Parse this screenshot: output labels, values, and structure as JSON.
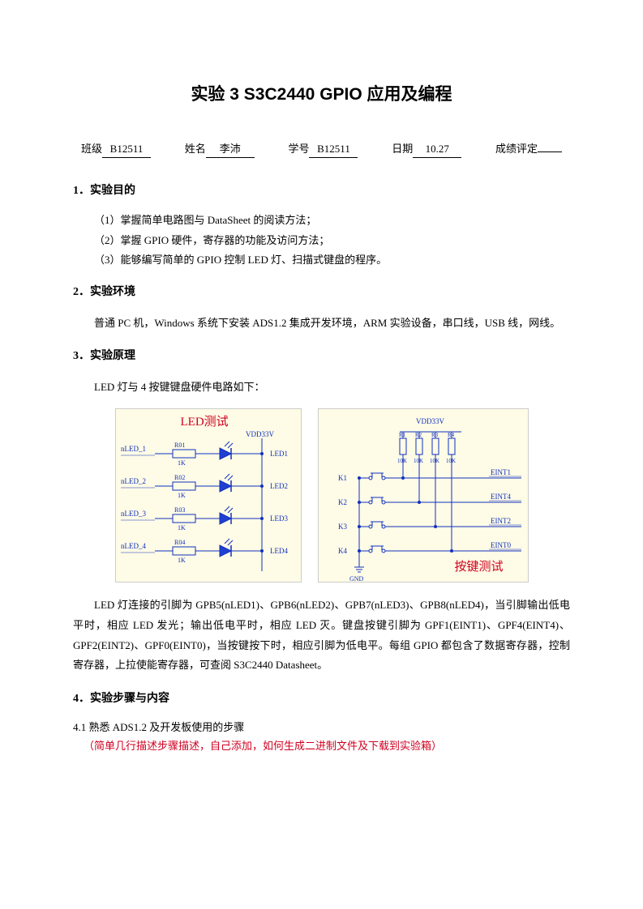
{
  "title": "实验 3 S3C2440 GPIO 应用及编程",
  "form": {
    "class_label": "班级",
    "class_value": "B12511",
    "name_label": "姓名",
    "name_value": "李沛",
    "id_label": "学号",
    "id_value": "B12511",
    "date_label": "日期",
    "date_value": "10.27",
    "grade_label": "成绩评定"
  },
  "sections": {
    "s1": {
      "heading": "1．实验目的",
      "items": [
        "（1）掌握简单电路图与 DataSheet 的阅读方法；",
        "（2）掌握 GPIO 硬件，寄存器的功能及访问方法；",
        "（3）能够编写简单的 GPIO 控制 LED 灯、扫描式键盘的程序。"
      ]
    },
    "s2": {
      "heading": "2．实验环境",
      "text": "普通 PC 机，Windows 系统下安装 ADS1.2 集成开发环境，ARM 实验设备，串口线，USB 线，网线。"
    },
    "s3": {
      "heading": "3．实验原理",
      "intro": "LED 灯与 4 按键键盘硬件电路如下：",
      "led_diagram": {
        "title": "LED测试",
        "vdd_label": "VDD33V",
        "rows": [
          {
            "pin": "nLED_1",
            "r": "R01",
            "rval": "1K",
            "led": "LED1"
          },
          {
            "pin": "nLED_2",
            "r": "R02",
            "rval": "1K",
            "led": "LED2"
          },
          {
            "pin": "nLED_3",
            "r": "R03",
            "rval": "1K",
            "led": "LED3"
          },
          {
            "pin": "nLED_4",
            "r": "R04",
            "rval": "1K",
            "led": "LED4"
          }
        ],
        "colors": {
          "wire": "#1030c0",
          "led_fill": "#2040d0",
          "text": "#1030c0",
          "title": "#d00020"
        }
      },
      "key_diagram": {
        "title": "按键测试",
        "vdd_label": "VDD33V",
        "gnd_label": "GND",
        "resistors": [
          "R1",
          "R2",
          "R3",
          "R4"
        ],
        "rval": "10K",
        "keys": [
          "K1",
          "K2",
          "K3",
          "K4"
        ],
        "eints": [
          "EINT1",
          "EINT4",
          "EINT2",
          "EINT0"
        ],
        "colors": {
          "wire": "#1030c0",
          "text": "#1030c0",
          "title": "#d00020"
        }
      },
      "body": "LED 灯连接的引脚为 GPB5(nLED1)、GPB6(nLED2)、GPB7(nLED3)、GPB8(nLED4)，当引脚输出低电平时，相应 LED 发光；输出低电平时，相应 LED 灭。键盘按键引脚为 GPF1(EINT1)、GPF4(EINT4)、GPF2(EINT2)、GPF0(EINT0)，当按键按下时，相应引脚为低电平。每组 GPIO 都包含了数据寄存器，控制寄存器，上拉使能寄存器，可查阅 S3C2440 Datasheet。"
    },
    "s4": {
      "heading": "4．实验步骤与内容",
      "sub": "4.1  熟悉 ADS1.2 及开发板使用的步骤",
      "note": "（简单几行描述步骤描述，自己添加，如何生成二进制文件及下载到实验箱）"
    }
  }
}
